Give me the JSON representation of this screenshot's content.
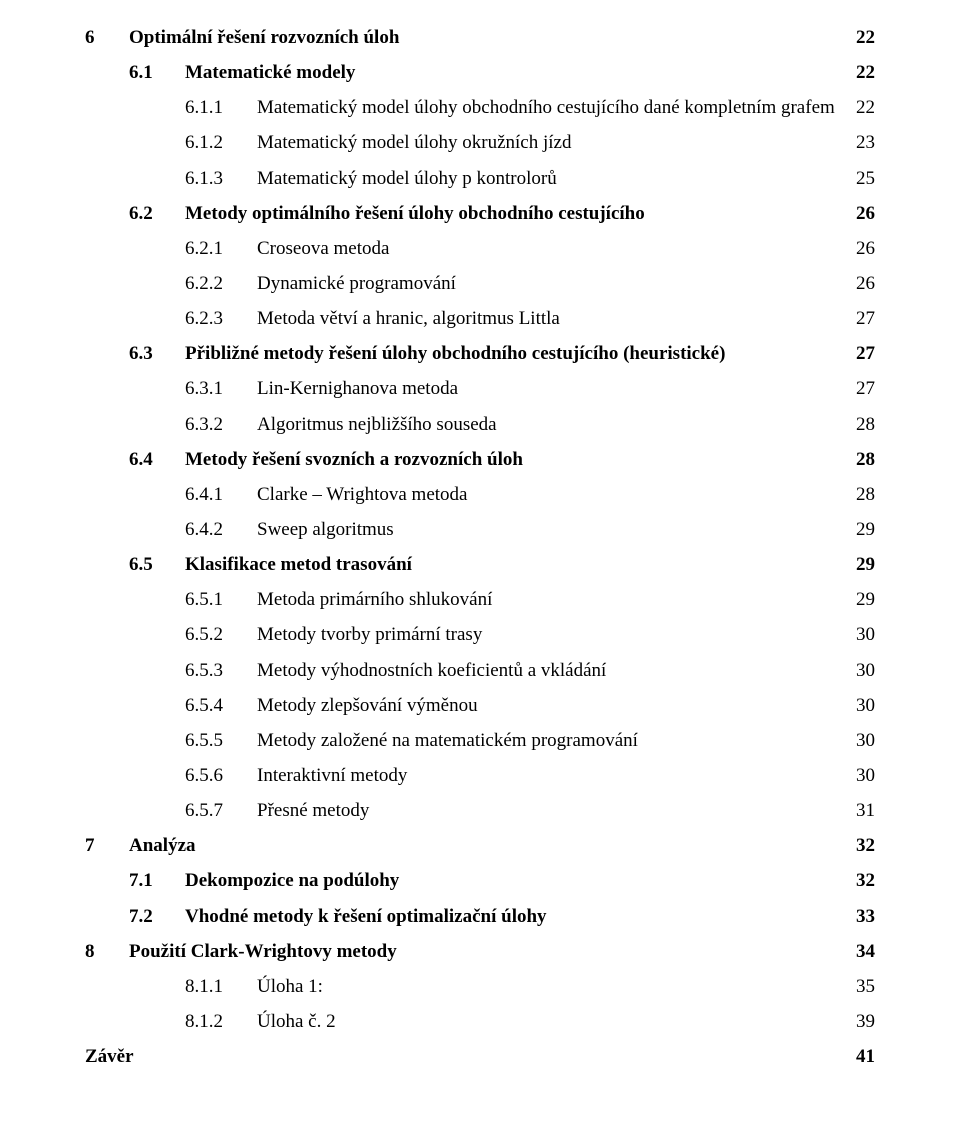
{
  "toc": [
    {
      "level": "lvl1",
      "bold": true,
      "num": "6",
      "title": "Optimální řešení rozvozních úloh",
      "page": "22",
      "dotted": true
    },
    {
      "level": "lvl2",
      "bold": true,
      "num": "6.1",
      "title": "Matematické modely",
      "page": "22",
      "dotted": false
    },
    {
      "level": "lvl3",
      "bold": false,
      "num": "6.1.1",
      "title": "Matematický model úlohy obchodního cestujícího dané kompletním grafem",
      "page": "22",
      "dotted": false
    },
    {
      "level": "lvl3",
      "bold": false,
      "num": "6.1.2",
      "title": "Matematický model úlohy okružních jízd",
      "page": "23",
      "dotted": false
    },
    {
      "level": "lvl3",
      "bold": false,
      "num": "6.1.3",
      "title": "Matematický model úlohy p kontrolorů",
      "page": "25",
      "dotted": false
    },
    {
      "level": "lvl2",
      "bold": true,
      "num": "6.2",
      "title": "Metody optimálního řešení úlohy obchodního cestujícího",
      "page": "26",
      "dotted": false
    },
    {
      "level": "lvl3",
      "bold": false,
      "num": "6.2.1",
      "title": "Croseova metoda",
      "page": "26",
      "dotted": false
    },
    {
      "level": "lvl3",
      "bold": false,
      "num": "6.2.2",
      "title": "Dynamické programování",
      "page": "26",
      "dotted": false
    },
    {
      "level": "lvl3",
      "bold": false,
      "num": "6.2.3",
      "title": "Metoda větví a hranic, algoritmus Littla",
      "page": "27",
      "dotted": false
    },
    {
      "level": "lvl2",
      "bold": true,
      "num": "6.3",
      "title": "Přibližné metody řešení úlohy obchodního cestujícího (heuristické)",
      "page": "27",
      "dotted": false
    },
    {
      "level": "lvl3",
      "bold": false,
      "num": "6.3.1",
      "title": "Lin-Kernighanova metoda",
      "page": "27",
      "dotted": false
    },
    {
      "level": "lvl3",
      "bold": false,
      "num": "6.3.2",
      "title": "Algoritmus nejbližšího souseda",
      "page": "28",
      "dotted": false
    },
    {
      "level": "lvl2",
      "bold": true,
      "num": "6.4",
      "title": "Metody řešení svozních a rozvozních úloh",
      "page": "28",
      "dotted": false
    },
    {
      "level": "lvl3",
      "bold": false,
      "num": "6.4.1",
      "title": "Clarke – Wrightova metoda",
      "page": "28",
      "dotted": false
    },
    {
      "level": "lvl3",
      "bold": false,
      "num": "6.4.2",
      "title": "Sweep algoritmus",
      "page": "29",
      "dotted": false
    },
    {
      "level": "lvl2",
      "bold": true,
      "num": "6.5",
      "title": "Klasifikace metod trasování",
      "page": "29",
      "dotted": false
    },
    {
      "level": "lvl3",
      "bold": false,
      "num": "6.5.1",
      "title": "Metoda primárního shlukování",
      "page": "29",
      "dotted": false
    },
    {
      "level": "lvl3",
      "bold": false,
      "num": "6.5.2",
      "title": "Metody tvorby primární trasy",
      "page": "30",
      "dotted": false
    },
    {
      "level": "lvl3",
      "bold": false,
      "num": "6.5.3",
      "title": "Metody výhodnostních koeficientů a vkládání",
      "page": "30",
      "dotted": false
    },
    {
      "level": "lvl3",
      "bold": false,
      "num": "6.5.4",
      "title": "Metody zlepšování výměnou",
      "page": "30",
      "dotted": false
    },
    {
      "level": "lvl3",
      "bold": false,
      "num": "6.5.5",
      "title": "Metody založené na matematickém programování",
      "page": "30",
      "dotted": false
    },
    {
      "level": "lvl3",
      "bold": false,
      "num": "6.5.6",
      "title": "Interaktivní metody",
      "page": "30",
      "dotted": false
    },
    {
      "level": "lvl3",
      "bold": false,
      "num": "6.5.7",
      "title": "Přesné metody",
      "page": "31",
      "dotted": false
    },
    {
      "level": "lvl1",
      "bold": true,
      "num": "7",
      "title": "Analýza",
      "page": "32",
      "dotted": true
    },
    {
      "level": "lvl2",
      "bold": true,
      "num": "7.1",
      "title": "Dekompozice na podúlohy",
      "page": "32",
      "dotted": false
    },
    {
      "level": "lvl2",
      "bold": true,
      "num": "7.2",
      "title": "Vhodné metody k řešení optimalizační úlohy",
      "page": "33",
      "dotted": false
    },
    {
      "level": "lvl1",
      "bold": true,
      "num": "8",
      "title": "Použití Clark-Wrightovy metody",
      "page": "34",
      "dotted": true
    },
    {
      "level": "lvl3",
      "bold": false,
      "num": "8.1.1",
      "title": "Úloha 1:",
      "page": "35",
      "dotted": false
    },
    {
      "level": "lvl3",
      "bold": false,
      "num": "8.1.2",
      "title": "Úloha č. 2",
      "page": "39",
      "dotted": false
    },
    {
      "level": "lvl1",
      "bold": true,
      "num": "",
      "title": "Závěr",
      "page": "41",
      "dotted": true,
      "nonum": true
    }
  ]
}
